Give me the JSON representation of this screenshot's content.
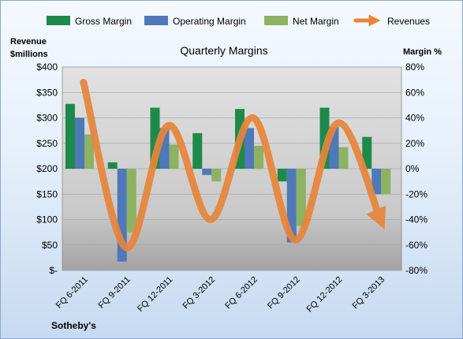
{
  "chart_data": {
    "type": "bar",
    "title": "Quarterly Margins",
    "company": "Sotheby's",
    "ylabel_left": [
      "Revenue",
      "$millions"
    ],
    "ylabel_right": "Margin %",
    "categories": [
      "FQ 6-2011",
      "FQ 9-2011",
      "FQ 12-2011",
      "FQ 3-2012",
      "FQ 6-2012",
      "FQ 9-2012",
      "FQ 12-2012",
      "FQ 3-2013"
    ],
    "y_left_ticks": [
      "$400",
      "$350",
      "$300",
      "$250",
      "$200",
      "$150",
      "$100",
      "$50",
      "$-"
    ],
    "y_right_ticks": [
      "80%",
      "60%",
      "40%",
      "20%",
      "0%",
      "-20%",
      "-40%",
      "-60%",
      "-80%"
    ],
    "ylim_left": [
      0,
      400
    ],
    "ylim_right": [
      -80,
      80
    ],
    "legend_position": "top",
    "series": [
      {
        "name": "Gross Margin",
        "color": "#1e8a4a",
        "axis": "right",
        "values": [
          51,
          5,
          48,
          28,
          47,
          -10,
          48,
          25
        ]
      },
      {
        "name": "Operating Margin",
        "color": "#4f78b8",
        "axis": "right",
        "values": [
          40,
          -73,
          32,
          -5,
          32,
          -58,
          33,
          -20
        ]
      },
      {
        "name": "Net Margin",
        "color": "#8db262",
        "axis": "right",
        "values": [
          27,
          -50,
          19,
          -10,
          18,
          -45,
          17,
          -20
        ]
      },
      {
        "name": "Revenues",
        "color": "#e8853a",
        "axis": "left",
        "type": "line",
        "values": [
          370,
          45,
          285,
          100,
          300,
          60,
          290,
          100
        ]
      }
    ]
  }
}
